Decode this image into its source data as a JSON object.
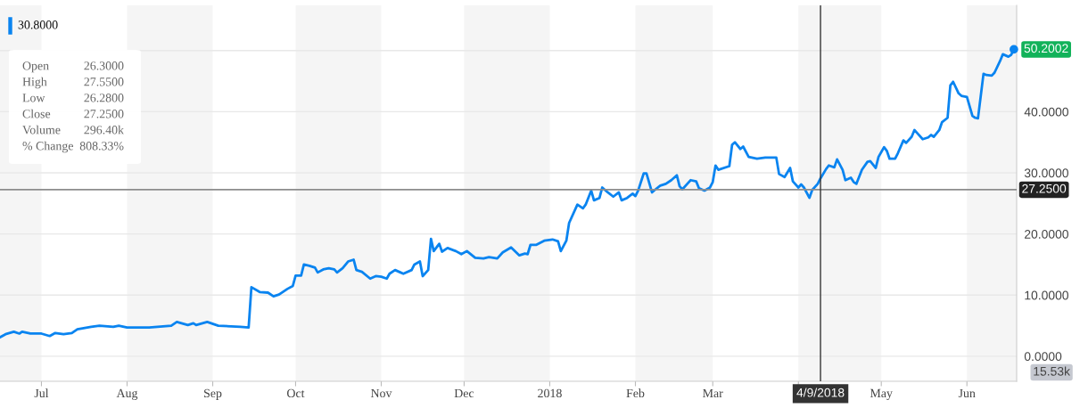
{
  "chart_data": {
    "type": "line",
    "x": [
      "2017-06-16",
      "2017-06-18",
      "2017-06-21",
      "2017-06-23",
      "2017-06-24",
      "2017-06-27",
      "2017-07-01",
      "2017-07-04",
      "2017-07-06",
      "2017-07-09",
      "2017-07-12",
      "2017-07-14",
      "2017-07-19",
      "2017-07-22",
      "2017-07-27",
      "2017-07-29",
      "2017-08-01",
      "2017-08-09",
      "2017-08-17",
      "2017-08-19",
      "2017-08-23",
      "2017-08-25",
      "2017-08-26",
      "2017-08-30",
      "2017-09-03",
      "2017-09-11",
      "2017-09-14",
      "2017-09-15",
      "2017-09-18",
      "2017-09-21",
      "2017-09-23",
      "2017-09-25",
      "2017-09-28",
      "2017-09-30",
      "2017-10-01",
      "2017-10-03",
      "2017-10-04",
      "2017-10-06",
      "2017-10-08",
      "2017-10-09",
      "2017-10-11",
      "2017-10-13",
      "2017-10-15",
      "2017-10-16",
      "2017-10-18",
      "2017-10-20",
      "2017-10-22",
      "2017-10-23",
      "2017-10-25",
      "2017-10-28",
      "2017-10-30",
      "2017-11-01",
      "2017-11-03",
      "2017-11-04",
      "2017-11-06",
      "2017-11-08",
      "2017-11-09",
      "2017-11-12",
      "2017-11-13",
      "2017-11-15",
      "2017-11-16",
      "2017-11-18",
      "2017-11-19",
      "2017-11-20",
      "2017-11-22",
      "2017-11-23",
      "2017-11-25",
      "2017-11-28",
      "2017-11-30",
      "2017-12-02",
      "2017-12-05",
      "2017-12-08",
      "2017-12-10",
      "2017-12-13",
      "2017-12-15",
      "2017-12-18",
      "2017-12-21",
      "2017-12-23",
      "2017-12-24",
      "2017-12-25",
      "2017-12-27",
      "2017-12-30",
      "2018-01-02",
      "2018-01-04",
      "2018-01-05",
      "2018-01-07",
      "2018-01-08",
      "2018-01-11",
      "2018-01-13",
      "2018-01-14",
      "2018-01-16",
      "2018-01-17",
      "2018-01-19",
      "2018-01-20",
      "2018-01-22",
      "2018-01-24",
      "2018-01-26",
      "2018-01-27",
      "2018-01-29",
      "2018-01-31",
      "2018-02-01",
      "2018-02-02",
      "2018-02-04",
      "2018-02-05",
      "2018-02-07",
      "2018-02-08",
      "2018-02-10",
      "2018-02-12",
      "2018-02-14",
      "2018-02-16",
      "2018-02-17",
      "2018-02-18",
      "2018-02-20",
      "2018-02-21",
      "2018-02-23",
      "2018-02-24",
      "2018-02-26",
      "2018-02-28",
      "2018-03-01",
      "2018-03-02",
      "2018-03-03",
      "2018-03-07",
      "2018-03-08",
      "2018-03-09",
      "2018-03-11",
      "2018-03-12",
      "2018-03-14",
      "2018-03-17",
      "2018-03-20",
      "2018-03-24",
      "2018-03-25",
      "2018-03-27",
      "2018-03-29",
      "2018-03-30",
      "2018-04-01",
      "2018-04-02",
      "2018-04-03",
      "2018-04-05",
      "2018-04-06",
      "2018-04-08",
      "2018-04-09",
      "2018-04-11",
      "2018-04-12",
      "2018-04-14",
      "2018-04-15",
      "2018-04-17",
      "2018-04-18",
      "2018-04-20",
      "2018-04-21",
      "2018-04-22",
      "2018-04-24",
      "2018-04-26",
      "2018-04-27",
      "2018-04-29",
      "2018-04-30",
      "2018-05-02",
      "2018-05-03",
      "2018-05-04",
      "2018-05-06",
      "2018-05-07",
      "2018-05-09",
      "2018-05-10",
      "2018-05-12",
      "2018-05-13",
      "2018-05-14",
      "2018-05-16",
      "2018-05-18",
      "2018-05-19",
      "2018-05-20",
      "2018-05-22",
      "2018-05-23",
      "2018-05-25",
      "2018-05-26",
      "2018-05-27",
      "2018-05-29",
      "2018-05-30",
      "2018-06-01",
      "2018-06-03",
      "2018-06-04",
      "2018-06-05",
      "2018-06-07",
      "2018-06-08",
      "2018-06-10",
      "2018-06-11",
      "2018-06-13",
      "2018-06-14",
      "2018-06-16",
      "2018-06-17",
      "2018-06-18"
    ],
    "series": [
      {
        "color": "#0a84f0",
        "values": [
          3.1,
          3.6,
          4.0,
          3.7,
          4.0,
          3.7,
          3.7,
          3.3,
          3.8,
          3.6,
          3.8,
          4.4,
          4.8,
          5.0,
          4.8,
          5.0,
          4.7,
          4.7,
          5.0,
          5.6,
          5.1,
          5.4,
          5.1,
          5.6,
          5.0,
          4.8,
          4.7,
          11.3,
          10.5,
          10.4,
          9.8,
          10.1,
          11.0,
          11.5,
          13.2,
          13.2,
          15.0,
          14.8,
          14.5,
          13.7,
          14.2,
          14.4,
          14.2,
          13.7,
          14.4,
          15.5,
          15.8,
          14.1,
          13.8,
          12.7,
          13.1,
          13.0,
          12.7,
          13.5,
          14.1,
          13.7,
          13.5,
          14.1,
          15.0,
          15.5,
          13.1,
          14.1,
          19.2,
          17.2,
          18.4,
          17.1,
          17.7,
          17.2,
          16.7,
          17.2,
          16.1,
          16.0,
          16.2,
          16.0,
          17.0,
          17.8,
          16.5,
          16.8,
          16.7,
          18.2,
          18.2,
          18.9,
          19.1,
          18.8,
          17.2,
          18.9,
          21.8,
          24.8,
          24.2,
          24.8,
          27.1,
          25.5,
          25.9,
          27.6,
          26.8,
          26.1,
          26.8,
          25.5,
          25.9,
          26.6,
          26.2,
          27.1,
          29.9,
          29.9,
          26.8,
          27.2,
          27.9,
          28.2,
          28.8,
          29.6,
          27.8,
          27.3,
          28.3,
          28.8,
          28.6,
          27.5,
          27.1,
          27.6,
          28.5,
          31.2,
          30.5,
          31.1,
          34.6,
          35.0,
          33.9,
          34.3,
          32.6,
          32.3,
          32.5,
          32.5,
          29.8,
          29.3,
          30.8,
          28.6,
          27.6,
          28.1,
          27.6,
          25.9,
          27.2,
          28.2,
          29.1,
          30.6,
          31.2,
          30.9,
          32.2,
          30.5,
          28.8,
          29.2,
          28.5,
          28.2,
          30.5,
          31.8,
          31.9,
          30.8,
          32.6,
          34.2,
          33.6,
          32.3,
          32.3,
          33.2,
          35.3,
          34.9,
          35.9,
          37.0,
          36.5,
          35.5,
          35.8,
          36.2,
          35.9,
          37.0,
          38.3,
          39.0,
          44.3,
          44.9,
          43.0,
          42.6,
          42.4,
          39.3,
          39.0,
          38.9,
          46.2,
          46.0,
          45.9,
          46.4,
          48.3,
          49.4,
          49.0,
          49.3,
          50.2
        ]
      }
    ],
    "xlim": [
      "2017-06-16",
      "2018-06-19"
    ],
    "xticks": [
      {
        "value": "2017-07-01",
        "label": "Jul"
      },
      {
        "value": "2017-08-01",
        "label": "Aug"
      },
      {
        "value": "2017-09-01",
        "label": "Sep"
      },
      {
        "value": "2017-10-01",
        "label": "Oct"
      },
      {
        "value": "2017-11-01",
        "label": "Nov"
      },
      {
        "value": "2017-12-01",
        "label": "Dec"
      },
      {
        "value": "2018-01-01",
        "label": "2018"
      },
      {
        "value": "2018-02-01",
        "label": "Feb"
      },
      {
        "value": "2018-03-01",
        "label": "Mar"
      },
      {
        "value": "2018-04-01",
        "label": null
      },
      {
        "value": "2018-05-01",
        "label": "May"
      },
      {
        "value": "2018-06-01",
        "label": "Jun"
      }
    ],
    "ylim": [
      -4.1,
      57.4
    ],
    "yticks": [
      {
        "value": 0,
        "label": "0.0000"
      },
      {
        "value": 10,
        "label": "10.0000"
      },
      {
        "value": 20,
        "label": "20.0000"
      },
      {
        "value": 30,
        "label": "30.0000"
      },
      {
        "value": 40,
        "label": "40.0000"
      },
      {
        "value": 50,
        "label": null
      }
    ],
    "grid": "y",
    "legend": false,
    "marker": "none",
    "line_style": "solid",
    "bands": [
      {
        "axis": "x",
        "from": "2017-06-16",
        "to": "2017-07-01",
        "color": "#f5f5f5"
      },
      {
        "axis": "x",
        "from": "2017-08-01",
        "to": "2017-09-01",
        "color": "#f5f5f5"
      },
      {
        "axis": "x",
        "from": "2017-10-01",
        "to": "2017-11-01",
        "color": "#f5f5f5"
      },
      {
        "axis": "x",
        "from": "2017-12-01",
        "to": "2018-01-01",
        "color": "#f5f5f5"
      },
      {
        "axis": "x",
        "from": "2018-02-01",
        "to": "2018-03-01",
        "color": "#f5f5f5"
      },
      {
        "axis": "x",
        "from": "2018-04-01",
        "to": "2018-05-01",
        "color": "#f5f5f5"
      },
      {
        "axis": "x",
        "from": "2018-06-01",
        "to": "2018-06-19",
        "color": "#f5f5f5"
      }
    ],
    "ref_lines": [
      {
        "axis": "y",
        "value": 27.25,
        "label": "27.2500",
        "color": "#8c8c8c"
      },
      {
        "axis": "x",
        "value": "2018-04-09",
        "label": "4/9/2018",
        "color": "#333333"
      }
    ],
    "annotations": [
      {
        "text": "50.2002",
        "x": "2018-06-18",
        "y": 50.2
      },
      "30.8000",
      "Open",
      "26.3000",
      "High",
      "27.5500",
      "Low",
      "26.2800",
      "Close",
      "27.2500",
      "Volume",
      "296.40k",
      "% Change",
      "808.33%",
      "15.53k"
    ]
  }
}
